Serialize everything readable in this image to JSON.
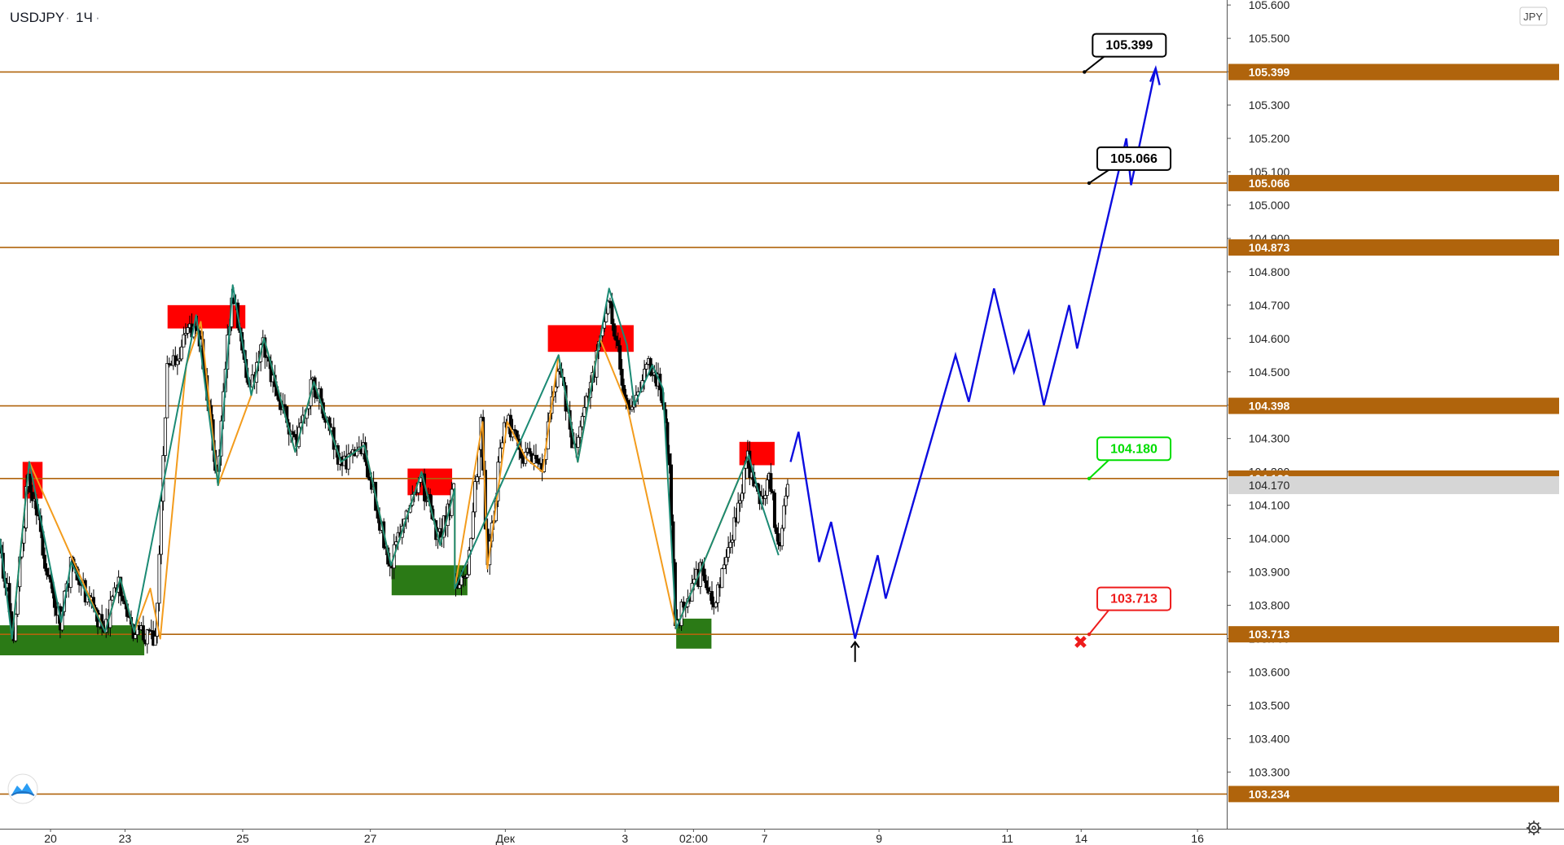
{
  "header": {
    "symbol": "USDJPY",
    "separator1": "·",
    "timeframe": "1Ч",
    "separator2": "·"
  },
  "currency_badge": "JPY",
  "chart_data": {
    "type": "candlestick",
    "title": "USDJPY · 1Ч",
    "xlabel": "",
    "ylabel": "",
    "currency": "JPY",
    "ylim": [
      103.13,
      105.615
    ],
    "x_domain": [
      -6.0,
      12.45
    ],
    "y_ticks": [
      "105.600",
      "105.500",
      "105.400",
      "105.300",
      "105.200",
      "105.100",
      "105.000",
      "104.900",
      "104.800",
      "104.700",
      "104.600",
      "104.500",
      "104.400",
      "104.300",
      "104.200",
      "104.100",
      "104.000",
      "103.900",
      "103.800",
      "103.700",
      "103.600",
      "103.500",
      "103.400",
      "103.300"
    ],
    "x_ticks": [
      {
        "label": "20",
        "x": -5.24
      },
      {
        "label": "23",
        "x": -4.12
      },
      {
        "label": "25",
        "x": -2.35
      },
      {
        "label": "27",
        "x": -0.43
      },
      {
        "label": "Дек",
        "x": 1.6
      },
      {
        "label": "3",
        "x": 3.4
      },
      {
        "label": "02:00",
        "x": 4.43
      },
      {
        "label": "7",
        "x": 5.5
      },
      {
        "label": "9",
        "x": 7.22
      },
      {
        "label": "11",
        "x": 9.15
      },
      {
        "label": "14",
        "x": 10.26
      },
      {
        "label": "16",
        "x": 12.01
      }
    ],
    "levels": [
      {
        "value": 105.399,
        "label": "105.399"
      },
      {
        "value": 105.066,
        "label": "105.066"
      },
      {
        "value": 104.873,
        "label": "104.873"
      },
      {
        "value": 104.398,
        "label": "104.398"
      },
      {
        "value": 104.18,
        "label": "104.180"
      },
      {
        "value": 103.713,
        "label": "103.713"
      },
      {
        "value": 103.234,
        "label": "103.234"
      }
    ],
    "current_price": {
      "value": 104.17,
      "label": "104.170"
    },
    "zones": [
      {
        "kind": "supply",
        "x0": -5.66,
        "x1": -5.36,
        "y0": 104.12,
        "y1": 104.23
      },
      {
        "kind": "supply",
        "x0": -3.48,
        "x1": -2.31,
        "y0": 104.63,
        "y1": 104.7
      },
      {
        "kind": "supply",
        "x0": 0.13,
        "x1": 0.8,
        "y0": 104.13,
        "y1": 104.21
      },
      {
        "kind": "supply",
        "x0": 2.24,
        "x1": 3.53,
        "y0": 104.56,
        "y1": 104.64
      },
      {
        "kind": "supply",
        "x0": 5.12,
        "x1": 5.65,
        "y0": 104.22,
        "y1": 104.29
      },
      {
        "kind": "demand",
        "x0": -6.0,
        "x1": -3.83,
        "y0": 103.65,
        "y1": 103.74
      },
      {
        "kind": "demand",
        "x0": -0.11,
        "x1": 1.03,
        "y0": 103.83,
        "y1": 103.92
      },
      {
        "kind": "demand",
        "x0": 4.17,
        "x1": 4.7,
        "y0": 103.67,
        "y1": 103.76
      }
    ],
    "swing_lines_teal": [
      [
        -6.0,
        104.0
      ],
      [
        -5.82,
        103.7
      ],
      [
        -5.56,
        104.23
      ],
      [
        -5.08,
        103.75
      ],
      [
        -4.93,
        103.93
      ],
      [
        -4.42,
        103.72
      ],
      [
        -4.19,
        103.88
      ],
      [
        -3.98,
        103.72
      ],
      [
        -3.05,
        104.67
      ],
      [
        -2.72,
        104.16
      ],
      [
        -2.5,
        104.76
      ],
      [
        -2.22,
        104.43
      ],
      [
        -2.03,
        104.6
      ],
      [
        -1.56,
        104.26
      ],
      [
        -1.28,
        104.47
      ],
      [
        -0.87,
        104.23
      ],
      [
        -0.52,
        104.28
      ],
      [
        -0.12,
        103.92
      ],
      [
        0.34,
        104.2
      ],
      [
        0.62,
        103.98
      ],
      [
        0.84,
        104.15
      ],
      [
        0.84,
        103.85
      ],
      [
        2.4,
        104.55
      ],
      [
        2.69,
        104.23
      ],
      [
        3.16,
        104.75
      ],
      [
        3.43,
        104.58
      ],
      [
        3.54,
        104.4
      ],
      [
        3.81,
        104.52
      ],
      [
        3.97,
        104.45
      ],
      [
        4.17,
        103.73
      ],
      [
        5.26,
        104.25
      ],
      [
        5.46,
        104.1
      ],
      [
        5.71,
        103.95
      ]
    ],
    "swing_lines_orange": [
      [
        -5.82,
        103.7
      ],
      [
        -5.56,
        104.23
      ],
      [
        -4.42,
        103.72
      ],
      [
        -4.19,
        103.88
      ],
      [
        -3.98,
        103.72
      ],
      [
        -3.74,
        103.85
      ],
      [
        -3.59,
        103.7
      ],
      [
        -3.2,
        104.52
      ],
      [
        -2.98,
        104.65
      ],
      [
        -2.72,
        104.16
      ],
      [
        -2.22,
        104.43
      ],
      [
        -2.03,
        104.6
      ],
      [
        -1.56,
        104.26
      ],
      [
        -1.28,
        104.47
      ],
      [
        -0.87,
        104.23
      ],
      [
        -0.52,
        104.28
      ],
      [
        -0.12,
        103.92
      ],
      [
        0.34,
        104.2
      ],
      [
        0.62,
        103.98
      ],
      [
        0.84,
        104.15
      ],
      [
        0.84,
        103.85
      ],
      [
        1.26,
        104.35
      ],
      [
        1.33,
        103.91
      ],
      [
        1.63,
        104.35
      ],
      [
        1.91,
        104.24
      ],
      [
        2.16,
        104.2
      ],
      [
        2.4,
        104.55
      ],
      [
        2.69,
        104.23
      ],
      [
        3.02,
        104.6
      ],
      [
        3.43,
        104.4
      ],
      [
        4.17,
        103.73
      ],
      [
        5.26,
        104.25
      ]
    ],
    "projection": [
      [
        5.89,
        104.23
      ],
      [
        6.01,
        104.32
      ],
      [
        6.32,
        103.93
      ],
      [
        6.5,
        104.05
      ],
      [
        6.86,
        103.7
      ],
      [
        7.2,
        103.95
      ],
      [
        7.32,
        103.82
      ],
      [
        8.37,
        104.55
      ],
      [
        8.57,
        104.41
      ],
      [
        8.95,
        104.75
      ],
      [
        9.25,
        104.5
      ],
      [
        9.47,
        104.62
      ],
      [
        9.7,
        104.4
      ],
      [
        10.08,
        104.7
      ],
      [
        10.2,
        104.57
      ],
      [
        10.94,
        105.2
      ],
      [
        11.01,
        105.06
      ],
      [
        11.38,
        105.41
      ]
    ],
    "projection_arrow_head": [
      [
        11.3,
        105.37
      ],
      [
        11.38,
        105.41
      ],
      [
        11.44,
        105.36
      ]
    ],
    "entry_arrow": {
      "x": 6.86,
      "y_from": 103.63,
      "y_to": 103.69
    },
    "stop_marker": {
      "x": 10.25,
      "y": 103.69,
      "symbol": "✖"
    },
    "callouts": [
      {
        "label": "105.399",
        "x": 10.31,
        "y": 105.45,
        "anchor_x": 10.31,
        "anchor_y": 105.399,
        "style": "neutral"
      },
      {
        "label": "105.066",
        "x": 10.38,
        "y": 105.11,
        "anchor_x": 10.38,
        "anchor_y": 105.066,
        "style": "target"
      },
      {
        "label": "104.180",
        "x": 10.38,
        "y": 104.24,
        "anchor_x": 10.38,
        "anchor_y": 104.18,
        "style": "positive"
      },
      {
        "label": "103.713",
        "x": 10.38,
        "y": 103.79,
        "anchor_x": 10.38,
        "anchor_y": 103.713,
        "style": "negative"
      }
    ],
    "candle_model": {
      "seed": 20201207,
      "anchors": [
        [
          -6.0,
          103.98
        ],
        [
          -5.78,
          103.72
        ],
        [
          -5.56,
          104.2
        ],
        [
          -5.28,
          103.9
        ],
        [
          -5.08,
          103.76
        ],
        [
          -4.92,
          103.92
        ],
        [
          -4.42,
          103.73
        ],
        [
          -4.2,
          103.86
        ],
        [
          -3.98,
          103.73
        ],
        [
          -3.65,
          103.7
        ],
        [
          -3.47,
          104.5
        ],
        [
          -3.1,
          104.62
        ],
        [
          -2.96,
          104.58
        ],
        [
          -2.72,
          104.18
        ],
        [
          -2.5,
          104.75
        ],
        [
          -2.22,
          104.44
        ],
        [
          -2.03,
          104.58
        ],
        [
          -1.55,
          104.28
        ],
        [
          -1.28,
          104.47
        ],
        [
          -0.87,
          104.23
        ],
        [
          -0.52,
          104.27
        ],
        [
          -0.12,
          103.92
        ],
        [
          0.34,
          104.19
        ],
        [
          0.6,
          103.99
        ],
        [
          0.84,
          104.14
        ],
        [
          0.84,
          103.86
        ],
        [
          1.04,
          103.86
        ],
        [
          1.25,
          104.35
        ],
        [
          1.35,
          103.92
        ],
        [
          1.6,
          104.36
        ],
        [
          1.92,
          104.24
        ],
        [
          2.17,
          104.21
        ],
        [
          2.4,
          104.53
        ],
        [
          2.68,
          104.24
        ],
        [
          3.02,
          104.58
        ],
        [
          3.16,
          104.74
        ],
        [
          3.43,
          104.42
        ],
        [
          3.55,
          104.4
        ],
        [
          3.8,
          104.52
        ],
        [
          3.97,
          104.44
        ],
        [
          4.08,
          104.2
        ],
        [
          4.17,
          103.74
        ],
        [
          4.55,
          103.9
        ],
        [
          4.75,
          103.82
        ],
        [
          5.0,
          103.98
        ],
        [
          5.26,
          104.24
        ],
        [
          5.44,
          104.1
        ],
        [
          5.58,
          104.2
        ],
        [
          5.72,
          103.96
        ],
        [
          5.86,
          104.17
        ]
      ],
      "bar_step": 0.0305,
      "noise": 0.035,
      "colors": {
        "up": "#ffffff",
        "down": "#000000",
        "outline": "#000000"
      }
    },
    "colors": {
      "level": "#b0640c",
      "level_label_bg": "#b0640c",
      "swing_teal": "#1b8a74",
      "swing_orange": "#f39c1d",
      "projection": "#0c0ce0",
      "supply": "#ff0000",
      "demand": "#2b7a16",
      "neutral_callout": "#000000",
      "positive_callout": "#00dd00",
      "negative_callout": "#ee1c1c",
      "current_price_bg": "#d6d6d6",
      "axis_text": "#222222",
      "grid": "#e8e8e8"
    },
    "grid": false,
    "legend": "none"
  },
  "footer": {
    "settings_icon": "gear-icon",
    "logo_icon": "tradingview-logo-icon"
  }
}
